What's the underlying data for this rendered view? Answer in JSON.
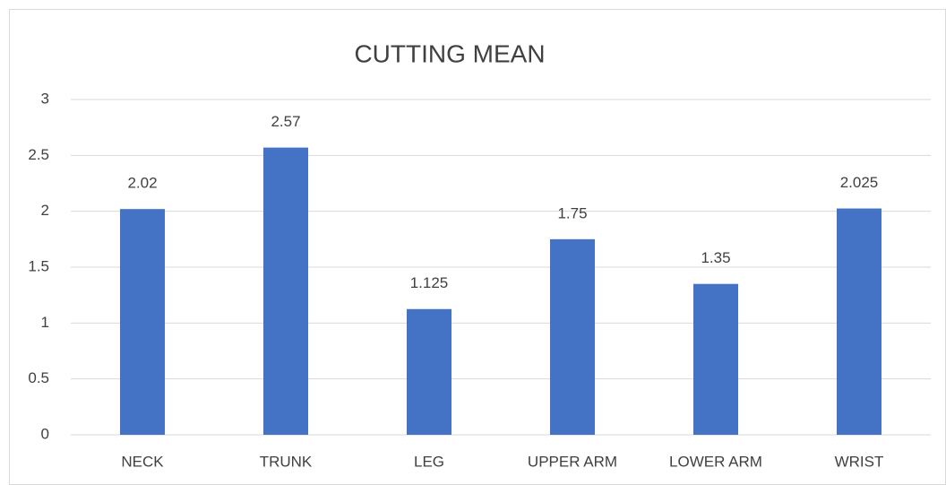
{
  "chart_data": {
    "type": "bar",
    "title": "CUTTING MEAN",
    "categories": [
      "NECK",
      "TRUNK",
      "LEG",
      "UPPER ARM",
      "LOWER ARM",
      "WRIST"
    ],
    "values": [
      2.02,
      2.57,
      1.125,
      1.75,
      1.35,
      2.025
    ],
    "color": "#4472c4",
    "ylim": [
      0,
      3
    ],
    "yticks": [
      0,
      0.5,
      1,
      1.5,
      2,
      2.5,
      3
    ],
    "grid": true,
    "data_labels": true
  }
}
